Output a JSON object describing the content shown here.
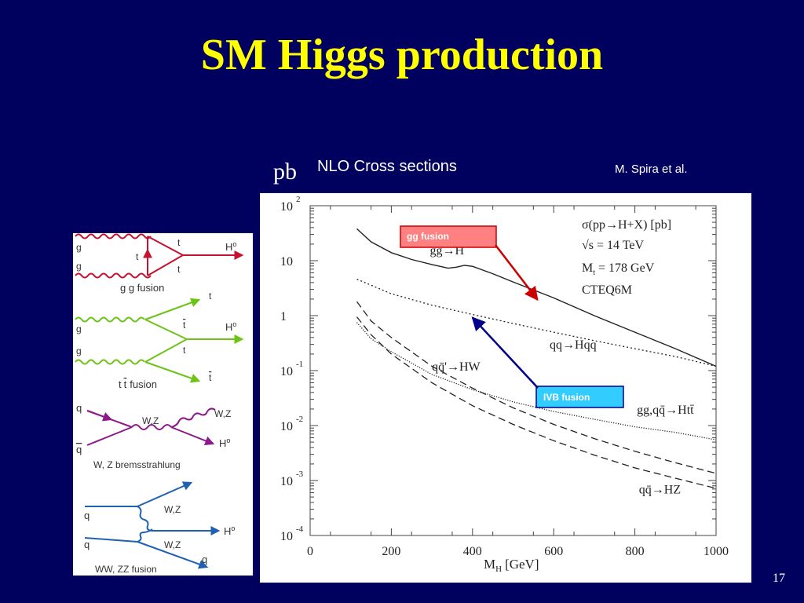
{
  "slide": {
    "title": "SM Higgs production",
    "unit_label": "pb",
    "plot_caption": "NLO Cross sections",
    "credit": "M. Spira et al.",
    "page_number": "17"
  },
  "diagrams": {
    "gg_fusion": {
      "caption": "g g fusion",
      "g_top": "g",
      "g_bottom": "g",
      "t1": "t",
      "t2": "t",
      "t3": "t",
      "higgs": "H",
      "color": "#c41230"
    },
    "ttbar_fusion": {
      "caption_t": "t",
      "caption_tbar": "t",
      "caption_rest": "fusion",
      "g_top": "g",
      "g_bottom": "g",
      "t_out": "t",
      "tbar_mid": "t",
      "t_mid": "t",
      "tbar_out": "t",
      "higgs": "H",
      "color": "#6cc417"
    },
    "bremsstrahlung": {
      "caption": "W, Z bremsstrahlung",
      "q": "q",
      "qbar": "q",
      "wz_prop": "W,Z",
      "wz_out": "W,Z",
      "higgs": "H",
      "color": "#8b1a8b"
    },
    "ww_fusion": {
      "caption": "WW, ZZ fusion",
      "q_in_top": "q",
      "q_in_bottom": "q",
      "wz_top": "W,Z",
      "wz_bottom": "W,Z",
      "higgs": "H",
      "q_out": "q",
      "color": "#2060b0"
    }
  },
  "chart_data": {
    "type": "line",
    "xlabel": "M",
    "xlabel_sub": "H",
    "xlabel_unit": "[GeV]",
    "xlim": [
      0,
      1000
    ],
    "ylim": [
      0.0001,
      100
    ],
    "y_scale": "log",
    "x_ticks": [
      "0",
      "200",
      "400",
      "600",
      "800",
      "1000"
    ],
    "y_ticks": [
      {
        "value": 100,
        "base": "10",
        "exp": "2"
      },
      {
        "value": 10,
        "base": "10",
        "exp": ""
      },
      {
        "value": 1,
        "base": "1",
        "exp": ""
      },
      {
        "value": 0.1,
        "base": "10",
        "exp": "-1"
      },
      {
        "value": 0.01,
        "base": "10",
        "exp": "-2"
      },
      {
        "value": 0.001,
        "base": "10",
        "exp": "-3"
      },
      {
        "value": 0.0001,
        "base": "10",
        "exp": "-4"
      }
    ],
    "legend": {
      "line1": "σ(pp→H+X) [pb]",
      "line2": "√s = 14 TeV",
      "line3_main": "M",
      "line3_sub": "t",
      "line3_rest": " = 178 GeV",
      "line4": "CTEQ6M"
    },
    "series": [
      {
        "label": "gg→H",
        "style": "solid",
        "x": [
          115,
          150,
          200,
          250,
          300,
          340,
          360,
          380,
          400,
          450,
          500,
          600,
          700,
          800,
          900,
          1000
        ],
        "y": [
          38,
          22,
          14,
          10.5,
          8.5,
          7.3,
          7.6,
          8.2,
          7.9,
          5.8,
          4.1,
          2.1,
          1.0,
          0.5,
          0.25,
          0.12
        ]
      },
      {
        "label": "qq→Hqq",
        "style": "dotted",
        "x": [
          115,
          200,
          300,
          400,
          500,
          600,
          700,
          800,
          900,
          1000
        ],
        "y": [
          4.6,
          2.5,
          1.55,
          1.05,
          0.72,
          0.5,
          0.35,
          0.25,
          0.18,
          0.12
        ]
      },
      {
        "label": "qq̄'→HW",
        "style": "dashed",
        "x": [
          115,
          150,
          200,
          300,
          400,
          500,
          600,
          700,
          800,
          900,
          1000
        ],
        "y": [
          1.8,
          0.8,
          0.4,
          0.12,
          0.048,
          0.021,
          0.0105,
          0.0058,
          0.0034,
          0.0021,
          0.00135
        ]
      },
      {
        "label": "gg,qq̄→Htt̄",
        "style": "dense-dotted",
        "x": [
          115,
          150,
          200,
          300,
          400,
          500,
          600,
          700,
          800,
          900,
          1000
        ],
        "y": [
          0.75,
          0.38,
          0.22,
          0.085,
          0.045,
          0.027,
          0.018,
          0.013,
          0.0095,
          0.0075,
          0.0055
        ]
      },
      {
        "label": "qq̄→HZ",
        "style": "dashed",
        "x": [
          115,
          150,
          200,
          300,
          400,
          500,
          600,
          700,
          800,
          900,
          1000
        ],
        "y": [
          0.95,
          0.45,
          0.2,
          0.06,
          0.023,
          0.0105,
          0.0053,
          0.0029,
          0.0017,
          0.0011,
          0.00072
        ]
      }
    ],
    "series_labels": [
      {
        "series": 0,
        "text": "gg→H",
        "at_x": 295,
        "at_y": 13
      },
      {
        "series": 1,
        "text": "qq→Hqq",
        "at_x": 590,
        "at_y": 0.25
      },
      {
        "series": 2,
        "text": "qq̄'→HW",
        "at_x": 300,
        "at_y": 0.1
      },
      {
        "series": 3,
        "text": "gg,qq̄→Htt̄",
        "at_x": 805,
        "at_y": 0.0165
      },
      {
        "series": 4,
        "text": "qq̄→HZ",
        "at_x": 810,
        "at_y": 0.00058
      }
    ],
    "annotations": [
      {
        "text": "gg fusion",
        "color": "#ff0000",
        "box_fill": "#ff8080",
        "arrow_to_x": 560,
        "arrow_to_y": 1.95
      },
      {
        "text": "IVB fusion",
        "color": "#00008b",
        "box_fill": "#33ccff",
        "arrow_to_x": 400,
        "arrow_to_y": 0.92
      }
    ]
  }
}
